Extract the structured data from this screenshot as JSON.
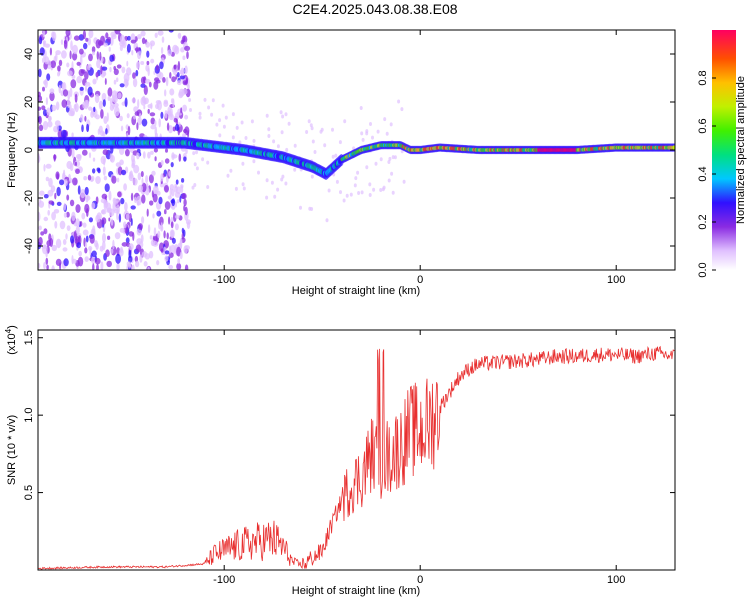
{
  "title": "C2E4.2025.043.08.38.E08",
  "chart_data": [
    {
      "type": "heatmap",
      "xlabel": "Height of straight line (km)",
      "ylabel": "Frequency (Hz)",
      "xlim": [
        -195,
        130
      ],
      "ylim": [
        -50,
        50
      ],
      "xticks": [
        -100,
        0,
        100
      ],
      "yticks": [
        -40,
        -20,
        0,
        20,
        40
      ],
      "colorbar": {
        "label": "Normalized spectral amplitude",
        "range": [
          0,
          1
        ],
        "ticks": [
          0.0,
          0.2,
          0.4,
          0.6,
          0.8
        ]
      },
      "ridge": {
        "x": [
          -195,
          -120,
          -110,
          -90,
          -70,
          -55,
          -48,
          -40,
          -30,
          -20,
          -10,
          -5,
          0,
          10,
          30,
          60,
          80,
          100,
          130
        ],
        "y": [
          3,
          3,
          2,
          0,
          -3,
          -7,
          -10,
          -4,
          0,
          2,
          2,
          0,
          0,
          1,
          0,
          0,
          0,
          1,
          1
        ]
      }
    },
    {
      "type": "line",
      "xlabel": "Height of straight line (km)",
      "ylabel": "SNR (10 * v/v)",
      "scale_label": "(x10",
      "scale_exp": "4",
      "xlim": [
        -195,
        130
      ],
      "ylim": [
        0,
        1.55
      ],
      "xticks": [
        -100,
        0,
        100
      ],
      "yticks": [
        0.5,
        1.0,
        1.5
      ],
      "ytick_labels": [
        "0.5",
        "1.0",
        "1.5"
      ],
      "series": [
        {
          "color": "#e83030",
          "x": [
            -195,
            -160,
            -130,
            -110,
            -105,
            -95,
            -85,
            -75,
            -70,
            -65,
            -60,
            -55,
            -50,
            -45,
            -40,
            -35,
            -30,
            -25,
            -20,
            -15,
            -10,
            -5,
            0,
            5,
            10,
            15,
            20,
            25,
            30,
            40,
            50,
            60,
            70,
            80,
            90,
            100,
            110,
            120,
            130
          ],
          "y": [
            0.01,
            0.02,
            0.02,
            0.04,
            0.1,
            0.15,
            0.18,
            0.2,
            0.15,
            0.05,
            0.03,
            0.08,
            0.12,
            0.3,
            0.45,
            0.55,
            0.6,
            0.75,
            0.7,
            0.75,
            0.8,
            0.9,
            0.9,
            0.95,
            1.05,
            1.15,
            1.25,
            1.3,
            1.33,
            1.34,
            1.35,
            1.36,
            1.38,
            1.38,
            1.39,
            1.39,
            1.38,
            1.4,
            1.38
          ]
        }
      ]
    }
  ]
}
